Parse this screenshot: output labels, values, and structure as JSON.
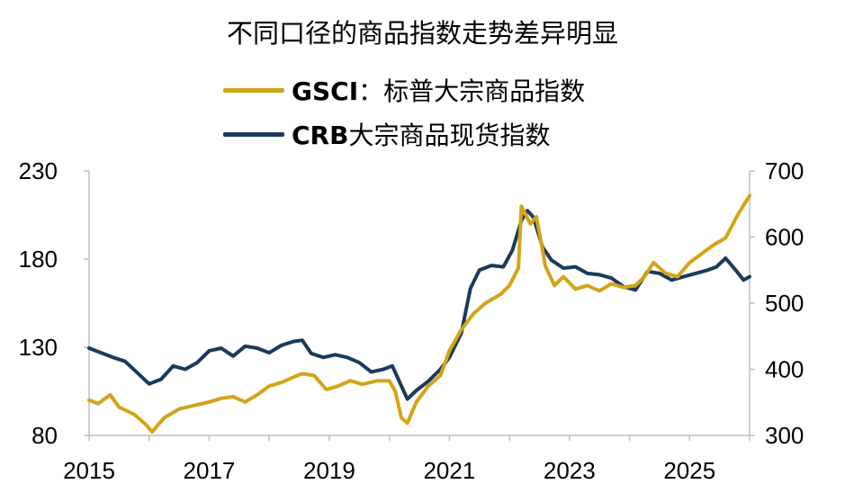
{
  "chart_data": {
    "type": "line",
    "title": "不同口径的商品指数走势差异明显",
    "x_range": [
      2015,
      2026
    ],
    "x_ticks": [
      "2015",
      "2017",
      "2019",
      "2021",
      "2023",
      "2025"
    ],
    "left_axis": {
      "ylim": [
        80,
        230
      ],
      "ticks": [
        "80",
        "130",
        "180",
        "230"
      ]
    },
    "right_axis": {
      "ylim": [
        300,
        700
      ],
      "ticks": [
        "300",
        "400",
        "500",
        "600",
        "700"
      ]
    },
    "legend_placement": "top-center",
    "grid": false,
    "series": [
      {
        "name_bold": "GSCI",
        "name_rest": "：标普大宗商品指数",
        "axis": "left",
        "color": "#D4A417",
        "points": [
          [
            2015.0,
            100
          ],
          [
            2015.15,
            98
          ],
          [
            2015.35,
            103
          ],
          [
            2015.5,
            96
          ],
          [
            2015.75,
            92
          ],
          [
            2015.95,
            86
          ],
          [
            2016.05,
            82
          ],
          [
            2016.25,
            90
          ],
          [
            2016.5,
            95
          ],
          [
            2016.75,
            97
          ],
          [
            2017.0,
            99
          ],
          [
            2017.2,
            101
          ],
          [
            2017.4,
            102
          ],
          [
            2017.6,
            99
          ],
          [
            2017.8,
            103
          ],
          [
            2018.0,
            108
          ],
          [
            2018.2,
            110
          ],
          [
            2018.4,
            113
          ],
          [
            2018.55,
            115
          ],
          [
            2018.75,
            114
          ],
          [
            2018.95,
            106
          ],
          [
            2019.15,
            108
          ],
          [
            2019.35,
            111
          ],
          [
            2019.55,
            109
          ],
          [
            2019.8,
            111
          ],
          [
            2020.0,
            111
          ],
          [
            2020.1,
            105
          ],
          [
            2020.2,
            90
          ],
          [
            2020.3,
            87
          ],
          [
            2020.45,
            99
          ],
          [
            2020.65,
            108
          ],
          [
            2020.85,
            114
          ],
          [
            2021.0,
            128
          ],
          [
            2021.2,
            140
          ],
          [
            2021.4,
            149
          ],
          [
            2021.6,
            155
          ],
          [
            2021.85,
            160
          ],
          [
            2022.0,
            165
          ],
          [
            2022.15,
            175
          ],
          [
            2022.2,
            210
          ],
          [
            2022.35,
            200
          ],
          [
            2022.45,
            204
          ],
          [
            2022.6,
            176
          ],
          [
            2022.75,
            165
          ],
          [
            2022.9,
            170
          ],
          [
            2023.1,
            163
          ],
          [
            2023.3,
            165
          ],
          [
            2023.5,
            162
          ],
          [
            2023.7,
            166
          ],
          [
            2023.9,
            164
          ],
          [
            2024.1,
            165
          ],
          [
            2024.25,
            170
          ],
          [
            2024.4,
            178
          ],
          [
            2024.6,
            172
          ],
          [
            2024.8,
            170
          ],
          [
            2025.0,
            178
          ],
          [
            2025.2,
            183
          ],
          [
            2025.4,
            188
          ],
          [
            2025.6,
            192
          ],
          [
            2025.8,
            205
          ],
          [
            2026.0,
            216
          ]
        ]
      },
      {
        "name_bold": "CRB",
        "name_rest": "大宗商品现货指数",
        "axis": "right",
        "color": "#1B3A5C",
        "points": [
          [
            2015.0,
            432
          ],
          [
            2015.2,
            425
          ],
          [
            2015.4,
            418
          ],
          [
            2015.6,
            412
          ],
          [
            2015.8,
            395
          ],
          [
            2016.0,
            378
          ],
          [
            2016.2,
            385
          ],
          [
            2016.4,
            405
          ],
          [
            2016.6,
            400
          ],
          [
            2016.8,
            410
          ],
          [
            2017.0,
            428
          ],
          [
            2017.2,
            432
          ],
          [
            2017.4,
            420
          ],
          [
            2017.6,
            435
          ],
          [
            2017.8,
            432
          ],
          [
            2018.0,
            425
          ],
          [
            2018.2,
            436
          ],
          [
            2018.4,
            442
          ],
          [
            2018.55,
            444
          ],
          [
            2018.7,
            424
          ],
          [
            2018.9,
            418
          ],
          [
            2019.1,
            422
          ],
          [
            2019.3,
            418
          ],
          [
            2019.5,
            410
          ],
          [
            2019.7,
            396
          ],
          [
            2019.9,
            400
          ],
          [
            2020.05,
            405
          ],
          [
            2020.2,
            375
          ],
          [
            2020.3,
            355
          ],
          [
            2020.45,
            368
          ],
          [
            2020.65,
            382
          ],
          [
            2020.85,
            400
          ],
          [
            2021.0,
            418
          ],
          [
            2021.2,
            455
          ],
          [
            2021.35,
            522
          ],
          [
            2021.5,
            550
          ],
          [
            2021.7,
            557
          ],
          [
            2021.9,
            555
          ],
          [
            2022.05,
            580
          ],
          [
            2022.2,
            625
          ],
          [
            2022.3,
            640
          ],
          [
            2022.4,
            630
          ],
          [
            2022.55,
            585
          ],
          [
            2022.7,
            565
          ],
          [
            2022.9,
            553
          ],
          [
            2023.1,
            555
          ],
          [
            2023.3,
            545
          ],
          [
            2023.5,
            543
          ],
          [
            2023.7,
            538
          ],
          [
            2023.9,
            525
          ],
          [
            2024.1,
            520
          ],
          [
            2024.3,
            548
          ],
          [
            2024.5,
            545
          ],
          [
            2024.7,
            535
          ],
          [
            2024.9,
            540
          ],
          [
            2025.1,
            545
          ],
          [
            2025.3,
            550
          ],
          [
            2025.45,
            555
          ],
          [
            2025.6,
            568
          ],
          [
            2025.75,
            552
          ],
          [
            2025.9,
            535
          ],
          [
            2026.0,
            540
          ]
        ]
      }
    ]
  }
}
